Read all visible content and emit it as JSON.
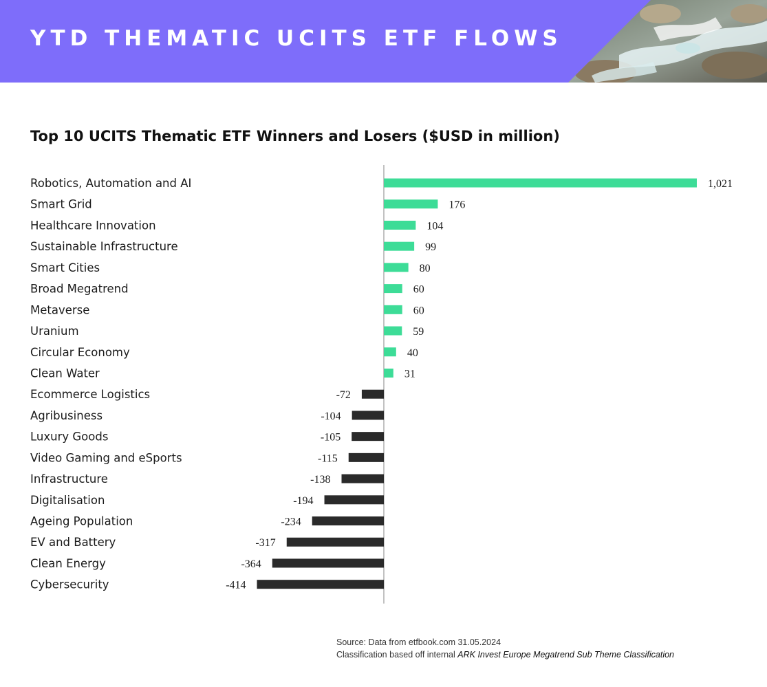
{
  "banner": {
    "title": "YTD THEMATIC UCITS ETF FLOWS",
    "background_color": "#7e6dfa"
  },
  "chart_data": {
    "type": "bar",
    "orientation": "horizontal",
    "title": "Top 10 UCITS Thematic ETF Winners and Losers ($USD in million)",
    "xlabel": "",
    "ylabel": "",
    "grid": false,
    "categories": [
      "Robotics, Automation and AI",
      "Smart Grid",
      "Healthcare Innovation",
      "Sustainable Infrastructure",
      "Smart Cities",
      "Broad Megatrend",
      "Metaverse",
      "Uranium",
      "Circular Economy",
      "Clean Water",
      "Ecommerce Logistics",
      "Agribusiness",
      "Luxury Goods",
      "Video Gaming and eSports",
      "Infrastructure",
      "Digitalisation",
      "Ageing Population",
      "EV and Battery",
      "Clean Energy",
      "Cybersecurity"
    ],
    "values": [
      1021,
      176,
      104,
      99,
      80,
      60,
      60,
      59,
      40,
      31,
      -72,
      -104,
      -105,
      -115,
      -138,
      -194,
      -234,
      -317,
      -364,
      -414
    ],
    "value_labels": [
      "1,021",
      "176",
      "104",
      "99",
      "80",
      "60",
      "60",
      "59",
      "40",
      "31",
      "-72",
      "-104",
      "-105",
      "-115",
      "-138",
      "-194",
      "-234",
      "-317",
      "-364",
      "-414"
    ],
    "colors": {
      "positive": "#3ddc97",
      "negative": "#2a2a2a",
      "axis": "#999999"
    }
  },
  "footnote": {
    "source": "Source: Data from etfbook.com 31.05.2024",
    "classification_prefix": "Classification based off internal ",
    "classification_emphasis": "ARK Invest Europe Megatrend Sub Theme Classification"
  }
}
